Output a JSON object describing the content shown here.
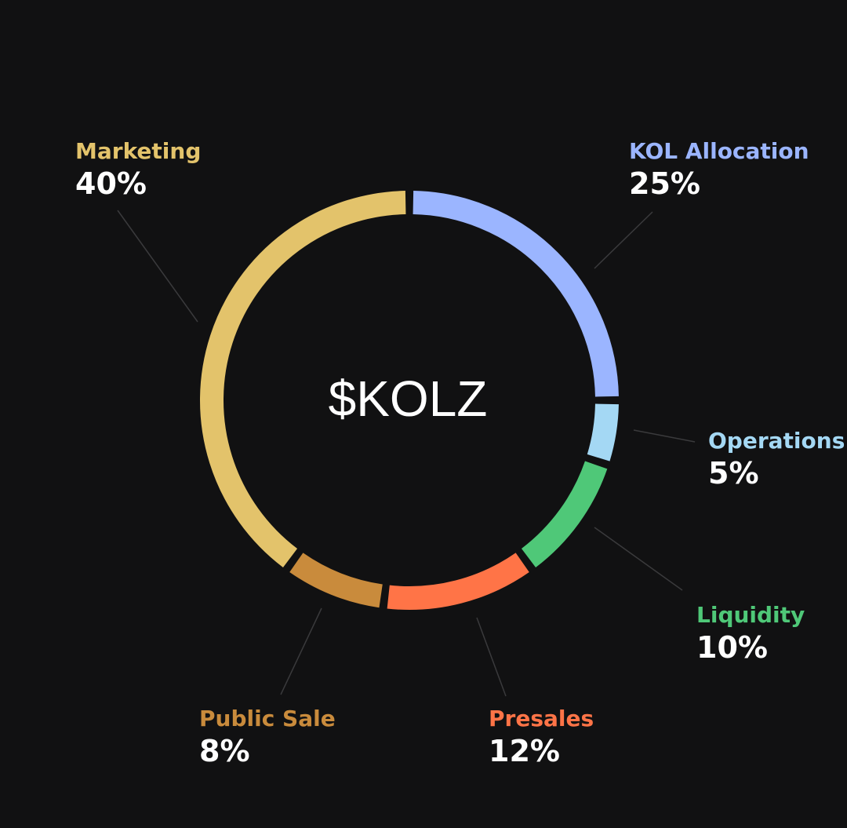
{
  "chart_data": {
    "type": "pie",
    "center_label": "$KOLZ",
    "slices": [
      {
        "name": "KOL Allocation",
        "value": 25,
        "label": "25%",
        "color": "#9bb5ff"
      },
      {
        "name": "Operations",
        "value": 5,
        "label": "5%",
        "color": "#a4d8f4"
      },
      {
        "name": "Liquidity",
        "value": 10,
        "label": "10%",
        "color": "#4fc878"
      },
      {
        "name": "Presales",
        "value": 12,
        "label": "12%",
        "color": "#ff7447"
      },
      {
        "name": "Public Sale",
        "value": 8,
        "label": "8%",
        "color": "#c98b3c"
      },
      {
        "name": "Marketing",
        "value": 40,
        "label": "40%",
        "color": "#e3c36b"
      }
    ]
  }
}
